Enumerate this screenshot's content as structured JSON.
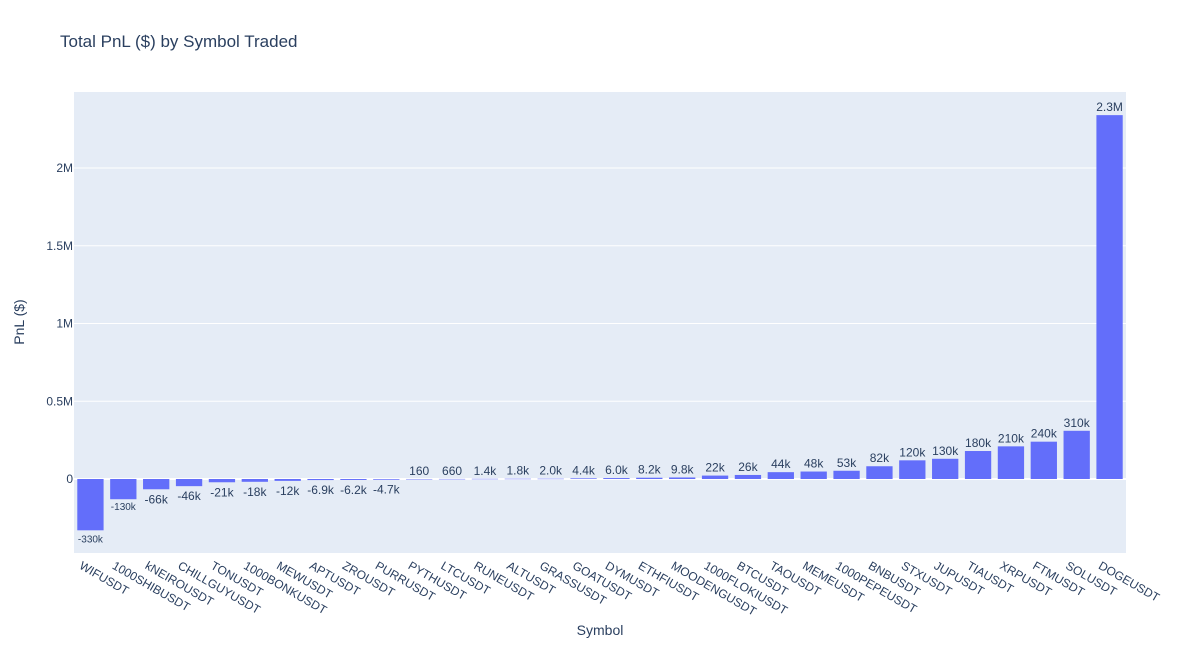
{
  "chart_data": {
    "type": "bar",
    "title": "Total PnL ($) by Symbol Traded",
    "xlabel": "Symbol",
    "ylabel": "PnL ($)",
    "ylim": [
      -480000,
      2450000
    ],
    "yticks": [
      0,
      500000,
      1000000,
      1500000,
      2000000
    ],
    "ytick_labels": [
      "0",
      "0.5M",
      "1M",
      "1.5M",
      "2M"
    ],
    "grid": true,
    "bar_color": "#636efa",
    "plot_bg": "#e5ecf6",
    "categories": [
      "WIFUSDT",
      "1000SHIBUSDT",
      "kNEIROUSDT",
      "CHILLGUYUSDT",
      "TONUSDT",
      "1000BONKUSDT",
      "MEWUSDT",
      "APTUSDT",
      "ZROUSDT",
      "PURRUSDT",
      "PYTHUSDT",
      "LTCUSDT",
      "RUNEUSDT",
      "ALTUSDT",
      "GRASSUSDT",
      "GOATUSDT",
      "DYMUSDT",
      "ETHFIUSDT",
      "MOODENGUSDT",
      "1000FLOKIUSDT",
      "BTCUSDT",
      "TAOUSDT",
      "MEMEUSDT",
      "1000PEPEUSDT",
      "BNBUSDT",
      "STXUSDT",
      "JUPUSDT",
      "TIAUSDT",
      "XRPUSDT",
      "FTMUSDT",
      "SOLUSDT",
      "DOGEUSDT"
    ],
    "values": [
      -330000,
      -130000,
      -66000,
      -46000,
      -21000,
      -18000,
      -12000,
      -6900,
      -6200,
      -4700,
      160,
      660,
      1400,
      1800,
      2000,
      4400,
      6000,
      8200,
      9800,
      22000,
      26000,
      44000,
      48000,
      53000,
      82000,
      120000,
      130000,
      180000,
      210000,
      240000,
      310000,
      2340000
    ],
    "labels": [
      "-330k",
      "-130k",
      "-66k",
      "-46k",
      "-21k",
      "-18k",
      "-12k",
      "-6.9k",
      "-6.2k",
      "-4.7k",
      "160",
      "660",
      "1.4k",
      "1.8k",
      "2.0k",
      "4.4k",
      "6.0k",
      "8.2k",
      "9.8k",
      "22k",
      "26k",
      "44k",
      "48k",
      "53k",
      "82k",
      "120k",
      "130k",
      "180k",
      "210k",
      "240k",
      "310k",
      "2.3M"
    ]
  }
}
